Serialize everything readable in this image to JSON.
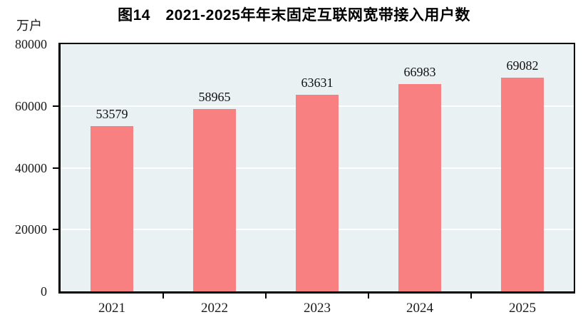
{
  "figure": {
    "title": "图14　2021-2025年年末固定互联网宽带接入用户数",
    "unit_label": "万户"
  },
  "chart_data": {
    "type": "bar",
    "title": "图14　2021-2025年年末固定互联网宽带接入用户数",
    "categories": [
      "2021",
      "2022",
      "2023",
      "2024",
      "2025"
    ],
    "values": [
      53579,
      58965,
      63631,
      66983,
      69082
    ],
    "value_labels": [
      "53579",
      "58965",
      "63631",
      "66983",
      "69082"
    ],
    "xlabel": "",
    "ylabel": "万户",
    "ylim": [
      0,
      80000
    ],
    "yticks": [
      0,
      20000,
      40000,
      60000,
      80000
    ],
    "ytick_labels": [
      "0",
      "20000",
      "40000",
      "60000",
      "80000"
    ],
    "gridline_levels": [
      20000,
      40000,
      60000
    ],
    "grid": true,
    "legend_position": "none",
    "colors": {
      "bar": "#f98080",
      "plot_background": "#e9f1f3",
      "gridline": "#ffffff",
      "axis": "#000000",
      "text": "#1a1a1a"
    }
  }
}
